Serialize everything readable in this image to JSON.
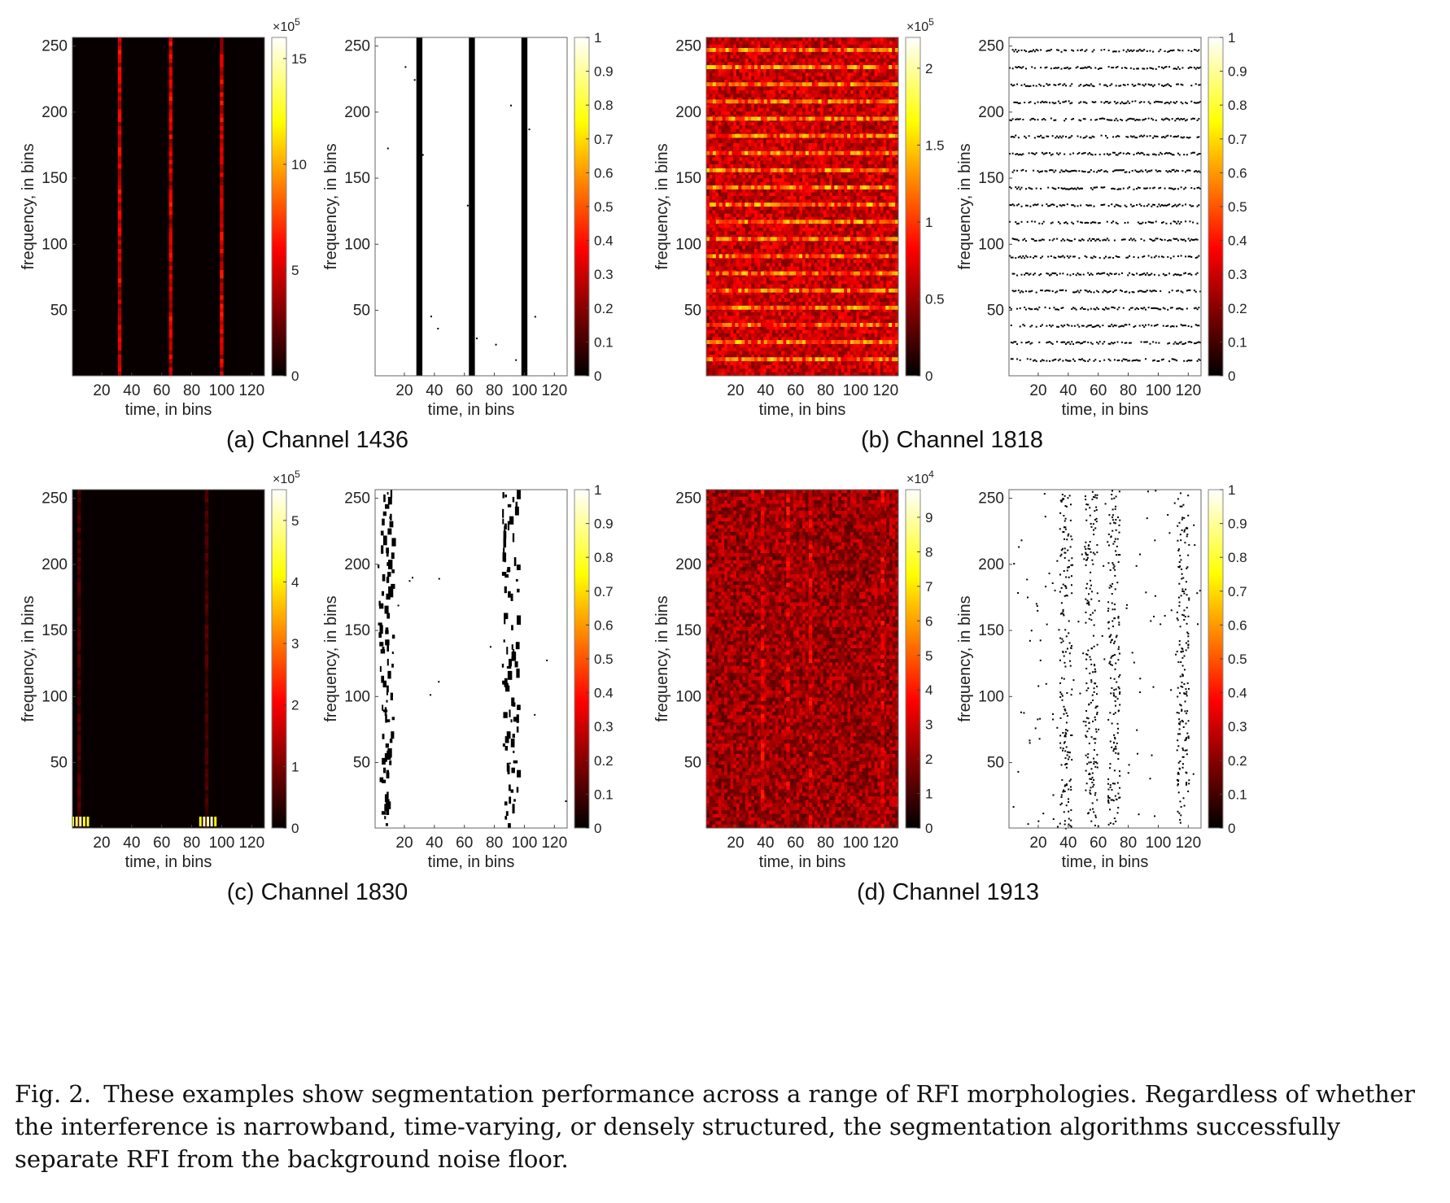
{
  "panels": [
    {
      "id": "a",
      "caption_letter": "(a)",
      "caption_text": "Channel 1436",
      "heatmap": {
        "type": "heatmap",
        "xlabel": "time, in bins",
        "ylabel": "frequency, in bins",
        "xticks": [
          "20",
          "40",
          "60",
          "80",
          "100",
          "120"
        ],
        "yticks": [
          "50",
          "100",
          "150",
          "200",
          "250"
        ],
        "xlim": [
          1,
          128
        ],
        "ylim": [
          1,
          256
        ],
        "colorbar": {
          "exponent": "×10",
          "power": "5",
          "ticks": [
            "0",
            "5",
            "10",
            "15"
          ],
          "range": [
            0,
            16
          ]
        },
        "pattern": "vertical-lines",
        "columns": [
          32,
          66,
          100
        ],
        "intensity": 0.35
      },
      "mask": {
        "type": "heatmap",
        "xlabel": "time, in bins",
        "ylabel": "frequency, in bins",
        "xticks": [
          "20",
          "40",
          "60",
          "80",
          "100",
          "120"
        ],
        "yticks": [
          "50",
          "100",
          "150",
          "200",
          "250"
        ],
        "colorbar": {
          "ticks": [
            "0",
            "0.1",
            "0.2",
            "0.3",
            "0.4",
            "0.5",
            "0.6",
            "0.7",
            "0.8",
            "0.9",
            "1"
          ],
          "range": [
            0,
            1
          ]
        },
        "pattern": "solid-columns",
        "columns": [
          30,
          65,
          100
        ],
        "width": 4
      }
    },
    {
      "id": "b",
      "caption_letter": "(b)",
      "caption_text": "Channel 1818",
      "heatmap": {
        "type": "heatmap",
        "xlabel": "time, in bins",
        "ylabel": "frequency, in bins",
        "xticks": [
          "20",
          "40",
          "60",
          "80",
          "100",
          "120"
        ],
        "yticks": [
          "50",
          "100",
          "150",
          "200",
          "250"
        ],
        "xlim": [
          1,
          128
        ],
        "ylim": [
          1,
          256
        ],
        "colorbar": {
          "exponent": "×10",
          "power": "5",
          "ticks": [
            "0",
            "0.5",
            "1",
            "1.5",
            "2"
          ],
          "range": [
            0,
            2.2
          ]
        },
        "pattern": "horizontal-bands",
        "rows": [
          13,
          26,
          39,
          52,
          65,
          78,
          91,
          104,
          117,
          130,
          143,
          156,
          169,
          182,
          195,
          208,
          221,
          234,
          247
        ],
        "intensity": 0.55
      },
      "mask": {
        "type": "heatmap",
        "xlabel": "time, in bins",
        "ylabel": "frequency, in bins",
        "xticks": [
          "20",
          "40",
          "60",
          "80",
          "100",
          "120"
        ],
        "yticks": [
          "50",
          "100",
          "150",
          "200",
          "250"
        ],
        "colorbar": {
          "ticks": [
            "0",
            "0.1",
            "0.2",
            "0.3",
            "0.4",
            "0.5",
            "0.6",
            "0.7",
            "0.8",
            "0.9",
            "1"
          ],
          "range": [
            0,
            1
          ]
        },
        "pattern": "horizontal-dotted",
        "rows": [
          13,
          26,
          39,
          52,
          65,
          78,
          91,
          104,
          117,
          130,
          143,
          156,
          169,
          182,
          195,
          208,
          221,
          234,
          247
        ]
      }
    },
    {
      "id": "c",
      "caption_letter": "(c)",
      "caption_text": "Channel 1830",
      "heatmap": {
        "type": "heatmap",
        "xlabel": "time, in bins",
        "ylabel": "frequency, in bins",
        "xticks": [
          "20",
          "40",
          "60",
          "80",
          "100",
          "120"
        ],
        "yticks": [
          "50",
          "100",
          "150",
          "200",
          "250"
        ],
        "xlim": [
          1,
          128
        ],
        "ylim": [
          1,
          256
        ],
        "colorbar": {
          "exponent": "×10",
          "power": "5",
          "ticks": [
            "0",
            "1",
            "2",
            "3",
            "4",
            "5"
          ],
          "range": [
            0,
            5.5
          ]
        },
        "pattern": "faint-columns",
        "columns": [
          5,
          90
        ],
        "intensity": 0.12
      },
      "mask": {
        "type": "heatmap",
        "xlabel": "time, in bins",
        "ylabel": "frequency, in bins",
        "xticks": [
          "20",
          "40",
          "60",
          "80",
          "100",
          "120"
        ],
        "yticks": [
          "50",
          "100",
          "150",
          "200",
          "250"
        ],
        "colorbar": {
          "ticks": [
            "0",
            "0.1",
            "0.2",
            "0.3",
            "0.4",
            "0.5",
            "0.6",
            "0.7",
            "0.8",
            "0.9",
            "1"
          ],
          "range": [
            0,
            1
          ]
        },
        "pattern": "broken-columns",
        "columns": [
          6,
          89
        ],
        "width": 12
      }
    },
    {
      "id": "d",
      "caption_letter": "(d)",
      "caption_text": "Channel 1913",
      "heatmap": {
        "type": "heatmap",
        "xlabel": "time, in bins",
        "ylabel": "frequency, in bins",
        "xticks": [
          "20",
          "40",
          "60",
          "80",
          "100",
          "120"
        ],
        "yticks": [
          "50",
          "100",
          "150",
          "200",
          "250"
        ],
        "xlim": [
          1,
          128
        ],
        "ylim": [
          1,
          256
        ],
        "colorbar": {
          "exponent": "×10",
          "power": "4",
          "ticks": [
            "0",
            "1",
            "2",
            "3",
            "4",
            "5",
            "6",
            "7",
            "8",
            "9"
          ],
          "range": [
            0,
            9.8
          ]
        },
        "pattern": "noisy-columns",
        "columns": [
          38,
          55,
          70,
          118
        ],
        "intensity": 0.35
      },
      "mask": {
        "type": "heatmap",
        "xlabel": "time, in bins",
        "ylabel": "frequency, in bins",
        "xticks": [
          "20",
          "40",
          "60",
          "80",
          "100",
          "120"
        ],
        "yticks": [
          "50",
          "100",
          "150",
          "200",
          "250"
        ],
        "colorbar": {
          "ticks": [
            "0",
            "0.1",
            "0.2",
            "0.3",
            "0.4",
            "0.5",
            "0.6",
            "0.7",
            "0.8",
            "0.9",
            "1"
          ],
          "range": [
            0,
            1
          ]
        },
        "pattern": "scattered-columns",
        "columns": [
          38,
          55,
          70,
          116
        ]
      }
    }
  ],
  "caption": {
    "label": "Fig. 2.",
    "text": "These examples show segmentation performance across a range of RFI morphologies. Regardless of whether the interference is narrowband, time-varying, or densely structured, the segmentation algorithms successfully separate RFI from the background noise floor."
  },
  "colors": {
    "hot_low": "#000000",
    "hot_mid": "#ff4000",
    "hot_high": "#ffffb0",
    "mask_on": "#ffffff",
    "mask_off": "#000000"
  }
}
